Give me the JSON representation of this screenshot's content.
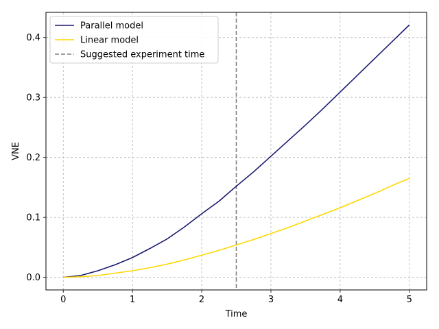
{
  "chart_data": {
    "type": "line",
    "title": "",
    "xlabel": "Time",
    "ylabel": "VNE",
    "xlim": [
      -0.25,
      5.25
    ],
    "ylim": [
      -0.021,
      0.442
    ],
    "xticks": [
      0,
      1,
      2,
      3,
      4,
      5
    ],
    "xtick_labels": [
      "0",
      "1",
      "2",
      "3",
      "4",
      "5"
    ],
    "yticks": [
      0.0,
      0.1,
      0.2,
      0.3,
      0.4
    ],
    "ytick_labels": [
      "0.0",
      "0.1",
      "0.2",
      "0.3",
      "0.4"
    ],
    "grid": true,
    "legend_position": "upper-left",
    "series": [
      {
        "name": "Parallel model",
        "color": "#191970",
        "x": [
          0,
          0.25,
          0.5,
          0.75,
          1,
          1.25,
          1.5,
          1.75,
          2,
          2.25,
          2.5,
          2.75,
          3,
          3.25,
          3.5,
          3.75,
          4,
          4.25,
          4.5,
          4.75,
          5
        ],
        "y": [
          0.0,
          0.003,
          0.011,
          0.021,
          0.033,
          0.048,
          0.064,
          0.084,
          0.106,
          0.127,
          0.152,
          0.176,
          0.202,
          0.228,
          0.254,
          0.281,
          0.309,
          0.337,
          0.365,
          0.393,
          0.421
        ]
      },
      {
        "name": "Linear model",
        "color": "#ffd700",
        "x": [
          0,
          0.25,
          0.5,
          0.75,
          1,
          1.25,
          1.5,
          1.75,
          2,
          2.25,
          2.5,
          2.75,
          3,
          3.25,
          3.5,
          3.75,
          4,
          4.25,
          4.5,
          4.75,
          5
        ],
        "y": [
          0.0,
          0.001,
          0.003,
          0.007,
          0.011,
          0.016,
          0.022,
          0.029,
          0.037,
          0.045,
          0.054,
          0.063,
          0.073,
          0.083,
          0.094,
          0.105,
          0.116,
          0.128,
          0.14,
          0.153,
          0.165
        ]
      }
    ],
    "vlines": [
      {
        "name": "Suggested experiment time",
        "x": 2.5,
        "color": "#808080",
        "style": "dashed"
      }
    ]
  }
}
